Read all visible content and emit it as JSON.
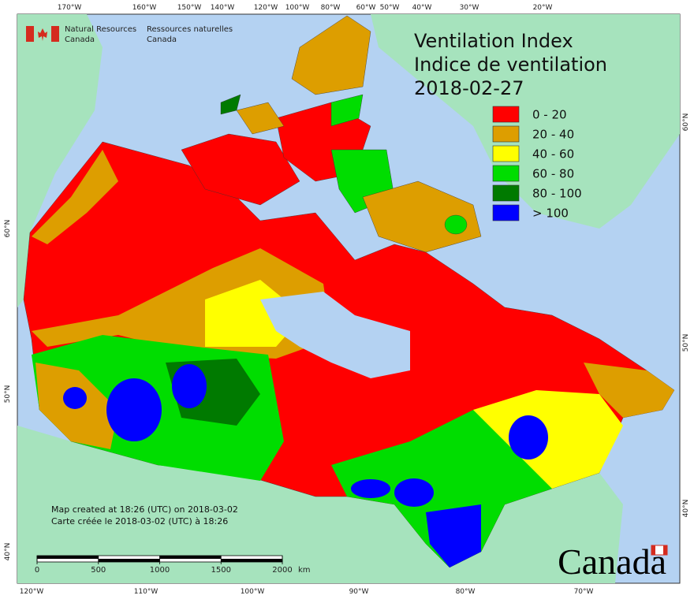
{
  "title": {
    "en": "Ventilation Index",
    "fr": "Indice de ventilation",
    "date": "2018-02-27"
  },
  "agency": {
    "en": [
      "Natural Resources",
      "Canada"
    ],
    "fr": [
      "Ressources naturelles",
      "Canada"
    ]
  },
  "legend": [
    {
      "label": "0 - 20",
      "color": "#ff0000"
    },
    {
      "label": "20 - 40",
      "color": "#dd9e00"
    },
    {
      "label": "40 - 60",
      "color": "#ffff00"
    },
    {
      "label": "60 - 80",
      "color": "#00dd00"
    },
    {
      "label": "80 - 100",
      "color": "#007a00"
    },
    {
      "label": "> 100",
      "color": "#0000ff"
    }
  ],
  "credits": [
    "Map created at 18:26 (UTC) on 2018-03-02",
    "Carte créée le 2018-03-02 (UTC) à 18:26"
  ],
  "scale_bar": {
    "ticks": [
      0,
      500,
      1000,
      1500,
      2000
    ],
    "unit": "km"
  },
  "graticule": {
    "top": [
      "170°W",
      "160°W",
      "150°W",
      "140°W",
      "120°W",
      "100°W",
      "80°W",
      "60°W",
      "50°W",
      "40°W",
      "30°W",
      "20°W"
    ],
    "bottom": [
      "120°W",
      "110°W",
      "100°W",
      "90°W",
      "80°W",
      "70°W"
    ],
    "left": [
      "60°N",
      "50°N",
      "40°N"
    ],
    "right": [
      "60°N",
      "50°N",
      "40°N"
    ]
  },
  "wordmark": "Canada"
}
